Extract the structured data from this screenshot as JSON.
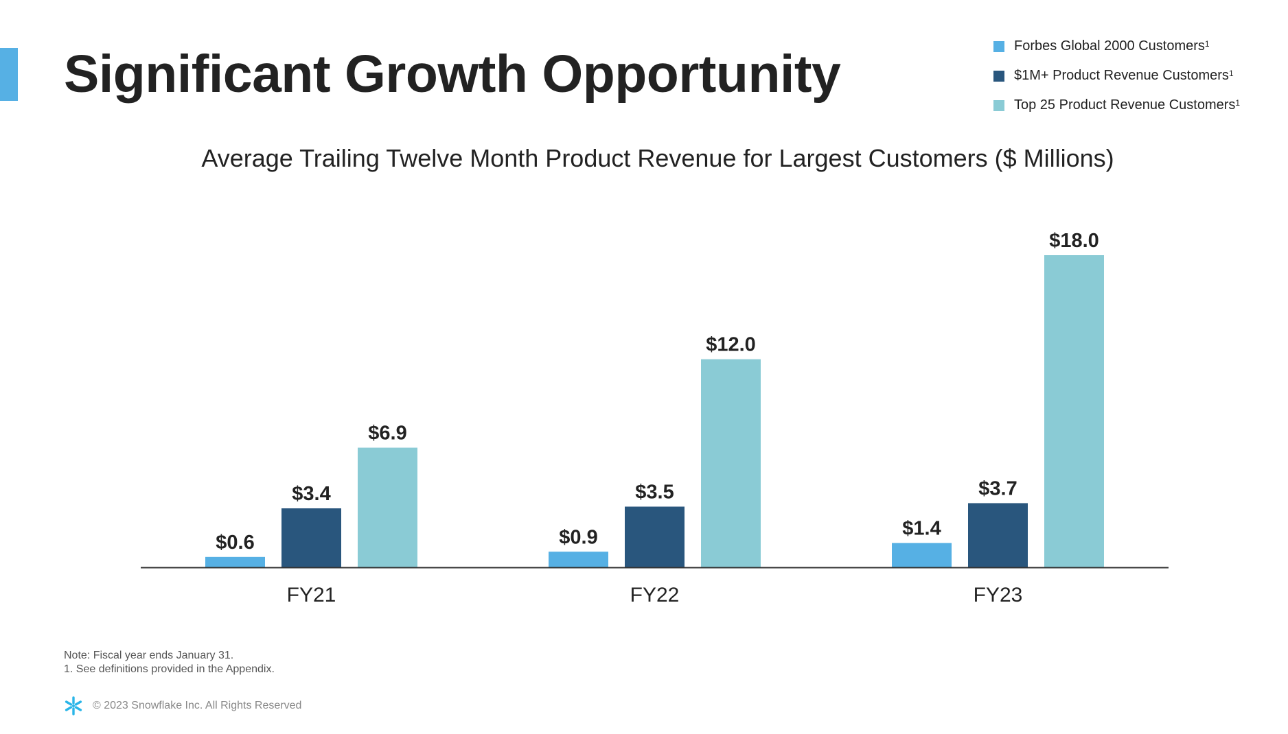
{
  "title": "Significant Growth Opportunity",
  "colors": {
    "accent": "#56b0e4"
  },
  "chart_data": {
    "type": "bar",
    "title": "Average Trailing Twelve Month Product Revenue for Largest Customers ($ Millions)",
    "categories": [
      "FY21",
      "FY22",
      "FY23"
    ],
    "series": [
      {
        "name": "Forbes Global 2000 Customers",
        "footnote": "1",
        "color": "#56b0e4",
        "values": [
          0.6,
          0.9,
          1.4
        ],
        "labels": [
          "$0.6",
          "$0.9",
          "$1.4"
        ]
      },
      {
        "name": "$1M+ Product Revenue Customers",
        "footnote": "1",
        "color": "#29567d",
        "values": [
          3.4,
          3.5,
          3.7
        ],
        "labels": [
          "$3.4",
          "$3.5",
          "$3.7"
        ]
      },
      {
        "name": "Top 25 Product Revenue Customers",
        "footnote": "1",
        "color": "#8acbd5",
        "values": [
          6.9,
          12.0,
          18.0
        ],
        "labels": [
          "$6.9",
          "$12.0",
          "$18.0"
        ]
      }
    ],
    "xlabel": "",
    "ylabel": "",
    "ylim": [
      0,
      18
    ],
    "grid": false,
    "legend": "top-right"
  },
  "notes": [
    "Note: Fiscal year ends January 31.",
    "1. See definitions provided in the Appendix."
  ],
  "footer": {
    "copyright": "© 2023 Snowflake Inc. All Rights Reserved",
    "logo": "snowflake-logo"
  }
}
